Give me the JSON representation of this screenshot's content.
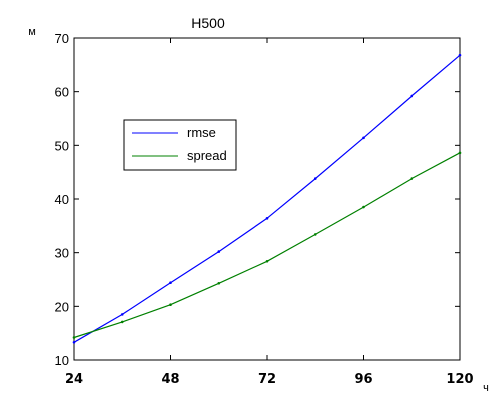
{
  "chart_data": {
    "type": "line",
    "title": "H500",
    "ylabel": "м",
    "xlabel": "ч",
    "xlim": [
      24,
      120
    ],
    "ylim": [
      10,
      70
    ],
    "xticks": [
      24,
      48,
      72,
      96,
      120
    ],
    "yticks": [
      10,
      20,
      30,
      40,
      50,
      60,
      70
    ],
    "grid": false,
    "legend_position": "upper-left",
    "series": [
      {
        "name": "rmse",
        "color": "#0000ff",
        "x": [
          24,
          36,
          48,
          60,
          72,
          84,
          96,
          108,
          120
        ],
        "y": [
          13.3,
          18.5,
          24.4,
          30.2,
          36.4,
          43.8,
          51.4,
          59.2,
          66.8
        ]
      },
      {
        "name": "spread",
        "color": "#008000",
        "x": [
          24,
          36,
          48,
          60,
          72,
          84,
          96,
          108,
          120
        ],
        "y": [
          14.2,
          17.1,
          20.3,
          24.3,
          28.4,
          33.4,
          38.5,
          43.8,
          48.6
        ]
      }
    ]
  }
}
